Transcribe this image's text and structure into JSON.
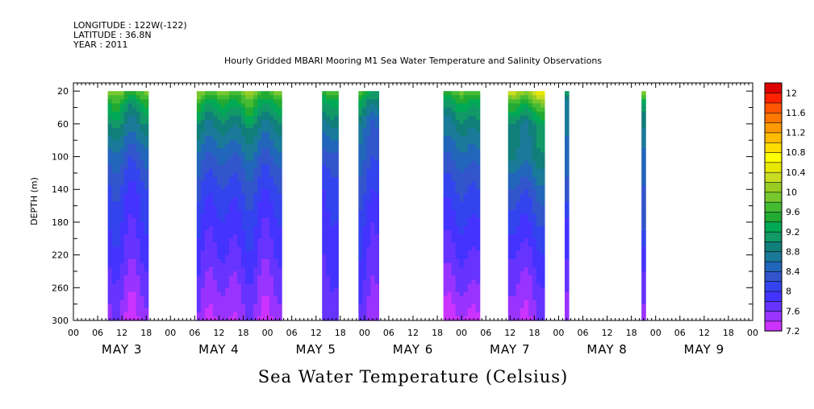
{
  "header": {
    "longitude": "LONGITUDE : 122W(-122)",
    "latitude": "LATITUDE : 36.8N",
    "year": "YEAR : 2011"
  },
  "chart_data": {
    "type": "heatmap",
    "title": "Hourly Gridded MBARI Mooring M1 Sea Water Temperature and Salinity Observations",
    "xlabel": "",
    "ylabel": "DEPTH (m)",
    "colorbar_label": "Sea Water Temperature (Celsius)",
    "x_unit": "hours since 2011-05-03 00:00",
    "xlim": [
      0,
      168
    ],
    "ylim": [
      300,
      10
    ],
    "y_ticks": [
      20,
      60,
      100,
      140,
      180,
      220,
      260,
      300
    ],
    "x_tick_labels": [
      "00",
      "06",
      "12",
      "18",
      "00",
      "06",
      "12",
      "18",
      "00",
      "06",
      "12",
      "18",
      "00",
      "06",
      "12",
      "18",
      "00",
      "06",
      "12",
      "18",
      "00",
      "06",
      "12",
      "18",
      "00",
      "06",
      "12",
      "18",
      "00"
    ],
    "x_day_labels": [
      "MAY 3",
      "MAY 4",
      "MAY 5",
      "MAY 6",
      "MAY 7",
      "MAY 8",
      "MAY 9"
    ],
    "colorbar": {
      "min": 7.2,
      "max": 12.2,
      "step": 0.2,
      "tick_labels": [
        "7.2",
        "7.6",
        "8",
        "8.4",
        "8.8",
        "9.2",
        "9.6",
        "10",
        "10.4",
        "10.8",
        "11.2",
        "11.6",
        "12"
      ],
      "colors": [
        "#cc33ff",
        "#9933ff",
        "#6633ff",
        "#4433ff",
        "#3344ee",
        "#3355cc",
        "#2266bb",
        "#1a7a99",
        "#117f7a",
        "#119966",
        "#00aa55",
        "#22aa33",
        "#44bb33",
        "#77c82e",
        "#99cc22",
        "#c8dd22",
        "#e8e800",
        "#ffff00",
        "#ffdd00",
        "#ffbb00",
        "#ff9900",
        "#ff7700",
        "#ff5500",
        "#ff2200",
        "#dd0000"
      ]
    },
    "data_blocks": [
      {
        "start": 8.5,
        "end": 18.5,
        "profile": [
          [
            20,
            9.8
          ],
          [
            35,
            9.3
          ],
          [
            60,
            8.9
          ],
          [
            100,
            8.4
          ],
          [
            140,
            8.1
          ],
          [
            180,
            7.95
          ],
          [
            220,
            7.8
          ],
          [
            260,
            7.6
          ],
          [
            300,
            7.45
          ]
        ]
      },
      {
        "start": 30.5,
        "end": 51.5,
        "profile": [
          [
            20,
            9.9
          ],
          [
            35,
            9.4
          ],
          [
            60,
            8.9
          ],
          [
            100,
            8.45
          ],
          [
            140,
            8.15
          ],
          [
            180,
            7.95
          ],
          [
            220,
            7.8
          ],
          [
            260,
            7.6
          ],
          [
            300,
            7.45
          ]
        ]
      },
      {
        "start": 61.5,
        "end": 65.5,
        "profile": [
          [
            20,
            9.7
          ],
          [
            35,
            9.2
          ],
          [
            60,
            8.8
          ],
          [
            100,
            8.3
          ],
          [
            140,
            8.05
          ],
          [
            180,
            7.95
          ],
          [
            220,
            7.85
          ],
          [
            260,
            7.75
          ],
          [
            300,
            7.65
          ]
        ]
      },
      {
        "start": 70.5,
        "end": 75.5,
        "profile": [
          [
            20,
            9.5
          ],
          [
            35,
            9.1
          ],
          [
            60,
            8.6
          ],
          [
            100,
            8.4
          ],
          [
            140,
            8.2
          ],
          [
            180,
            8.0
          ],
          [
            220,
            7.9
          ],
          [
            260,
            7.75
          ],
          [
            300,
            7.6
          ]
        ]
      },
      {
        "start": 91.5,
        "end": 100.5,
        "profile": [
          [
            20,
            9.8
          ],
          [
            35,
            9.3
          ],
          [
            60,
            8.9
          ],
          [
            100,
            8.5
          ],
          [
            140,
            8.2
          ],
          [
            180,
            8.0
          ],
          [
            220,
            7.8
          ],
          [
            260,
            7.6
          ],
          [
            300,
            7.35
          ]
        ]
      },
      {
        "start": 107.5,
        "end": 116.5,
        "profile": [
          [
            20,
            10.3
          ],
          [
            35,
            9.6
          ],
          [
            60,
            8.9
          ],
          [
            100,
            8.8
          ],
          [
            140,
            8.35
          ],
          [
            180,
            8.05
          ],
          [
            220,
            7.8
          ],
          [
            260,
            7.6
          ],
          [
            300,
            7.45
          ]
        ]
      },
      {
        "start": 121.5,
        "end": 122.5,
        "profile": [
          [
            20,
            9.4
          ],
          [
            35,
            8.9
          ],
          [
            60,
            8.8
          ],
          [
            100,
            8.6
          ],
          [
            140,
            8.5
          ],
          [
            180,
            8.1
          ],
          [
            220,
            7.95
          ],
          [
            260,
            7.75
          ],
          [
            300,
            7.55
          ]
        ]
      },
      {
        "start": 140.5,
        "end": 141.5,
        "profile": [
          [
            20,
            10.2
          ],
          [
            35,
            9.3
          ],
          [
            60,
            8.9
          ],
          [
            100,
            8.6
          ],
          [
            140,
            8.45
          ],
          [
            180,
            8.35
          ],
          [
            220,
            8.0
          ],
          [
            260,
            7.75
          ],
          [
            300,
            7.6
          ]
        ]
      }
    ]
  }
}
